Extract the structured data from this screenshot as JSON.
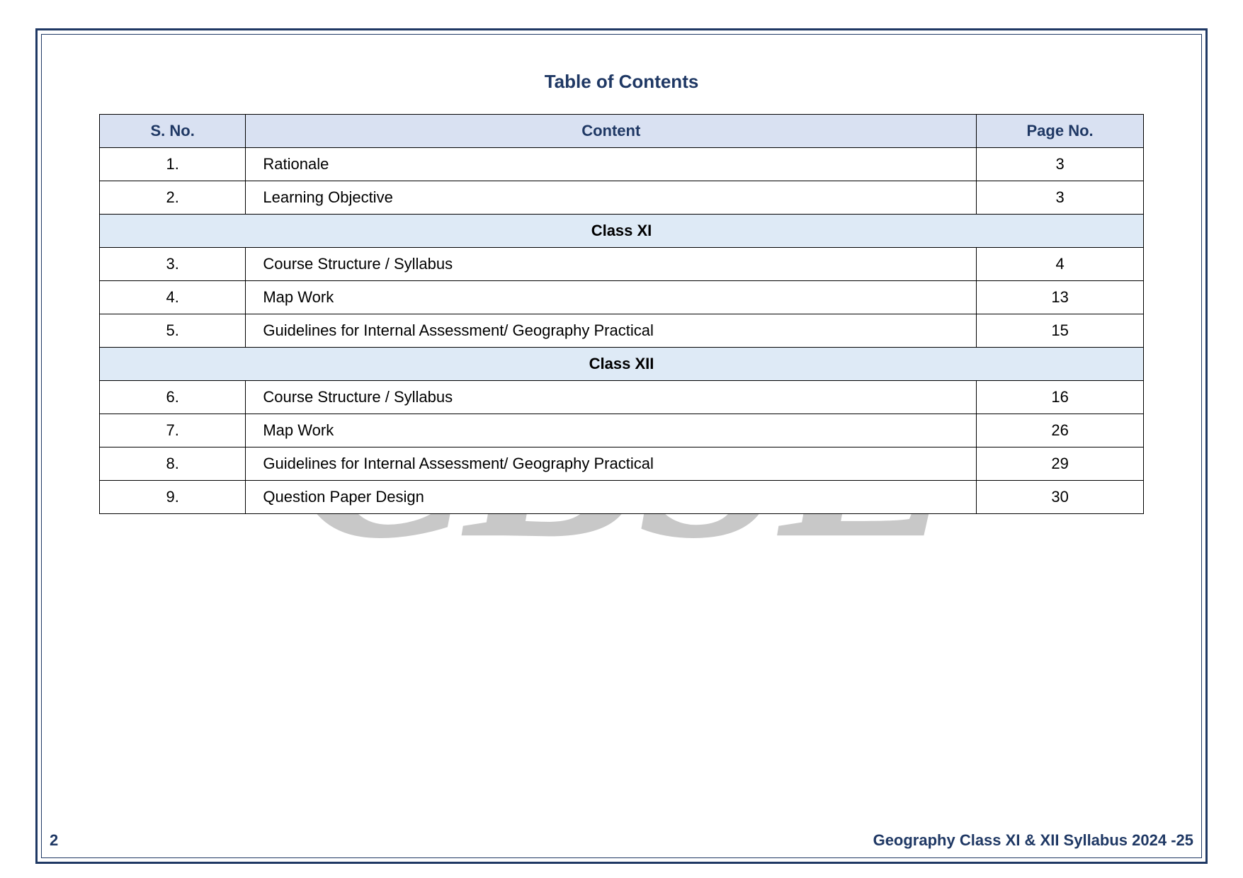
{
  "title": "Table of Contents",
  "watermark": "CBSE",
  "columns": {
    "sno": "S. No.",
    "content": "Content",
    "page": "Page No."
  },
  "rows": [
    {
      "type": "data",
      "sno": "1.",
      "content": "Rationale",
      "page": "3"
    },
    {
      "type": "data",
      "sno": "2.",
      "content": "Learning Objective",
      "page": "3"
    },
    {
      "type": "section",
      "label": "Class XI"
    },
    {
      "type": "data",
      "sno": "3.",
      "content": "Course Structure / Syllabus",
      "page": "4"
    },
    {
      "type": "data",
      "sno": "4.",
      "content": "Map Work",
      "page": "13"
    },
    {
      "type": "data",
      "sno": "5.",
      "content": "Guidelines for Internal Assessment/ Geography Practical",
      "page": "15"
    },
    {
      "type": "section",
      "label": "Class XII"
    },
    {
      "type": "data",
      "sno": "6.",
      "content": "Course Structure / Syllabus",
      "page": "16"
    },
    {
      "type": "data",
      "sno": "7.",
      "content": "Map Work",
      "page": "26"
    },
    {
      "type": "data",
      "sno": "8.",
      "content": "Guidelines for Internal Assessment/ Geography Practical",
      "page": "29"
    },
    {
      "type": "data",
      "sno": "9.",
      "content": "Question Paper Design",
      "page": "30"
    }
  ],
  "footer": {
    "page_number": "2",
    "doc_title": "Geography Class XI & XII Syllabus 2024 -25"
  },
  "colors": {
    "border": "#1f3864",
    "header_bg": "#d9e1f2",
    "section_bg": "#deeaf6",
    "watermark": "#bfbfbf",
    "text_accent": "#1f3864",
    "cell_border": "#000000",
    "page_bg": "#ffffff"
  },
  "typography": {
    "title_fontsize": 26,
    "cell_fontsize": 22,
    "footer_fontsize": 22,
    "watermark_fontsize": 380
  }
}
